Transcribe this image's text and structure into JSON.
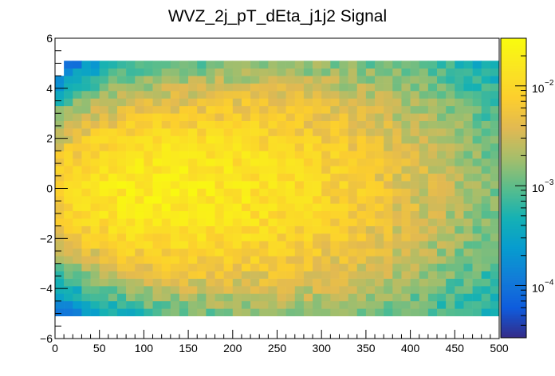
{
  "chart_data": {
    "type": "heatmap",
    "title": "WVZ_2j_pT_dEta_j1j2 Signal",
    "xlabel": "",
    "ylabel": "",
    "xlim": [
      0,
      500
    ],
    "ylim": [
      -6,
      6
    ],
    "xbins": 50,
    "ybins": 40,
    "x_ticks": [
      "0",
      "50",
      "100",
      "150",
      "200",
      "250",
      "300",
      "350",
      "400",
      "450",
      "500"
    ],
    "y_ticks": [
      "−6",
      "−4",
      "−2",
      "0",
      "2",
      "4",
      "6"
    ],
    "colorbar": {
      "scale": "log",
      "range": [
        3e-05,
        0.03
      ],
      "ticks": [
        {
          "base": "10",
          "exp": "−2",
          "value": 0.01
        },
        {
          "base": "10",
          "exp": "−3",
          "value": 0.001
        },
        {
          "base": "10",
          "exp": "−4",
          "value": 0.0001
        }
      ]
    },
    "grid": false,
    "legend": "colorbar right",
    "density": {
      "peak_x": 100,
      "peak_y": 0,
      "peak_value": 0.02,
      "description_values_in_data_units": "occupied region spans x 0–500 and y about −5 to 5; highest bin content near x≈50–130, y≈−1.5 to 1.5 (~0.01–0.02), falling to ~0.0001 at the edges"
    }
  }
}
